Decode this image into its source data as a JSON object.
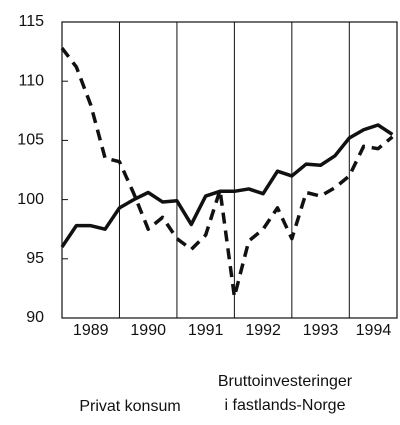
{
  "chart_data": {
    "type": "line",
    "x": [
      1989,
      1989.25,
      1989.5,
      1989.75,
      1990,
      1990.25,
      1990.5,
      1990.75,
      1991,
      1991.25,
      1991.5,
      1991.75,
      1992,
      1992.25,
      1992.5,
      1992.75,
      1993,
      1993.25,
      1993.5,
      1993.75,
      1994,
      1994.25,
      1994.5,
      1994.75
    ],
    "series": [
      {
        "name": "Privat konsum",
        "color": "#111111",
        "dash": false,
        "values": [
          96,
          97.8,
          97.8,
          97.5,
          99.3,
          100,
          100.6,
          99.8,
          99.9,
          97.9,
          100.3,
          100.7,
          100.7,
          100.9,
          100.5,
          102.4,
          102,
          103,
          102.9,
          103.7,
          105.2,
          105.9,
          106.3,
          105.5
        ]
      },
      {
        "name": "Bruttoinvesteringer\ni fastlands-Norge",
        "color": "#111111",
        "dash": true,
        "values": [
          112.8,
          111.2,
          108,
          103.5,
          103.2,
          100.5,
          97.5,
          98.5,
          96.7,
          95.8,
          97,
          100.8,
          91.8,
          96.5,
          97.5,
          99.3,
          96.7,
          100.6,
          100.3,
          101,
          102,
          104.5,
          104.3,
          105.3
        ]
      }
    ],
    "xlim": [
      1989,
      1994.83
    ],
    "xticks": [
      {
        "value": 1989.5,
        "label": "1989"
      },
      {
        "value": 1990.5,
        "label": "1990"
      },
      {
        "value": 1991.5,
        "label": "1991"
      },
      {
        "value": 1992.5,
        "label": "1992"
      },
      {
        "value": 1993.5,
        "label": "1993"
      },
      {
        "value": 1994.42,
        "label": "1994"
      }
    ],
    "xgrid": [
      1990,
      1991,
      1992,
      1993,
      1994
    ],
    "ylim": [
      90,
      115
    ],
    "yticks": [
      90,
      95,
      100,
      105,
      110,
      115
    ]
  }
}
